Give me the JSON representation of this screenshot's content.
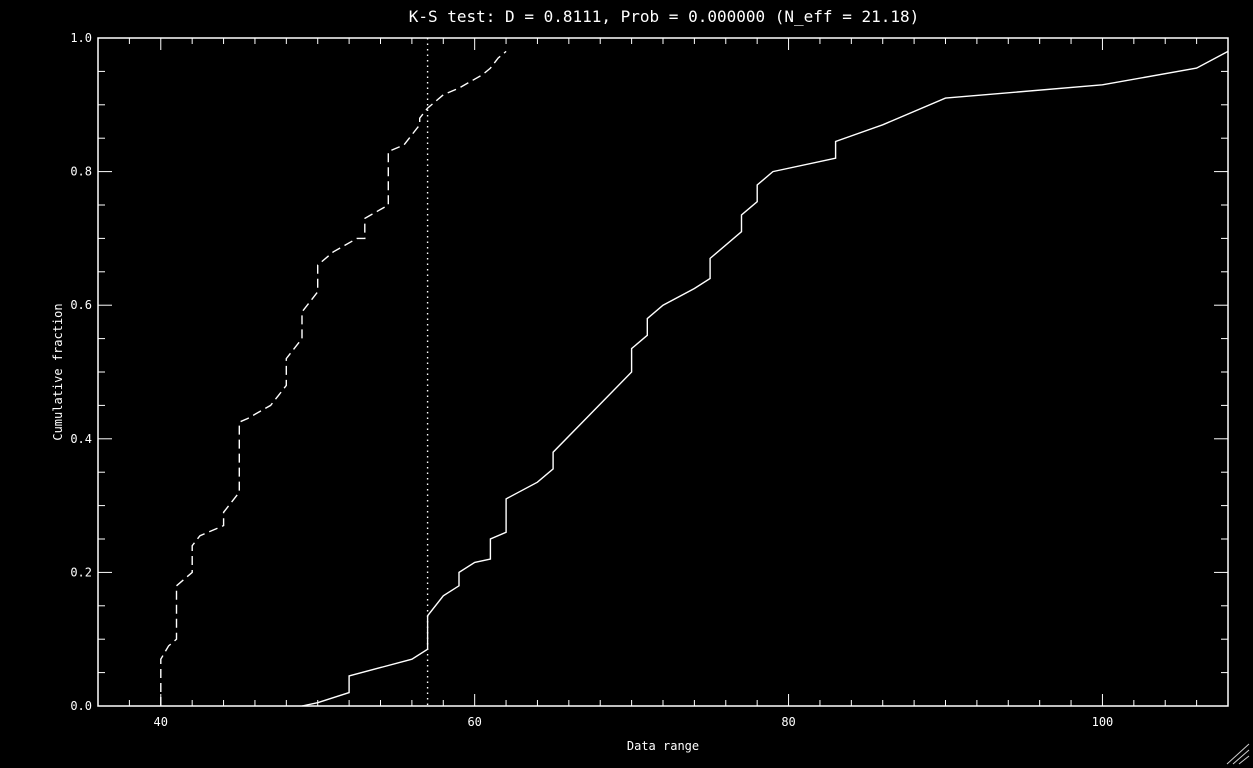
{
  "chart_data": {
    "type": "line",
    "title": "K-S test:  D = 0.8111, Prob = 0.000000  (N_eff = 21.18)",
    "xlabel": "Data range",
    "ylabel": "Cumulative fraction",
    "xlim": [
      36,
      108
    ],
    "ylim": [
      0,
      1
    ],
    "x_ticks": [
      40,
      60,
      80,
      100
    ],
    "x_tick_labels": [
      "40",
      "60",
      "80",
      "100"
    ],
    "y_ticks": [
      0,
      0.2,
      0.4,
      0.6,
      0.8,
      1.0
    ],
    "y_tick_labels": [
      "0.0",
      "0.2",
      "0.4",
      "0.6",
      "0.8",
      "1.0"
    ],
    "x_minor_step": 2,
    "y_minor_step": 0.05,
    "grid": false,
    "background": "#000000",
    "foreground": "#ffffff",
    "series": [
      {
        "style": "dashed",
        "color": "#ffffff",
        "points": [
          [
            40,
            0.0
          ],
          [
            40,
            0.07
          ],
          [
            40.5,
            0.09
          ],
          [
            41,
            0.1
          ],
          [
            41,
            0.18
          ],
          [
            41.5,
            0.19
          ],
          [
            42,
            0.2
          ],
          [
            42,
            0.24
          ],
          [
            42.5,
            0.255
          ],
          [
            44,
            0.27
          ],
          [
            44,
            0.29
          ],
          [
            44.5,
            0.305
          ],
          [
            45,
            0.32
          ],
          [
            45,
            0.425
          ],
          [
            45.5,
            0.43
          ],
          [
            47,
            0.45
          ],
          [
            47.5,
            0.465
          ],
          [
            48,
            0.48
          ],
          [
            48,
            0.52
          ],
          [
            48.5,
            0.535
          ],
          [
            49,
            0.55
          ],
          [
            49,
            0.59
          ],
          [
            49.5,
            0.605
          ],
          [
            50,
            0.62
          ],
          [
            50,
            0.66
          ],
          [
            51,
            0.68
          ],
          [
            52.5,
            0.7
          ],
          [
            53,
            0.7
          ],
          [
            53,
            0.73
          ],
          [
            54.5,
            0.75
          ],
          [
            54.5,
            0.83
          ],
          [
            55.5,
            0.84
          ],
          [
            56.5,
            0.87
          ],
          [
            56.5,
            0.88
          ],
          [
            57,
            0.895
          ],
          [
            57.5,
            0.905
          ],
          [
            58,
            0.915
          ],
          [
            59,
            0.925
          ],
          [
            60.5,
            0.945
          ],
          [
            61,
            0.955
          ],
          [
            61.5,
            0.97
          ],
          [
            62,
            0.98
          ]
        ]
      },
      {
        "style": "solid",
        "color": "#ffffff",
        "points": [
          [
            49,
            0.0
          ],
          [
            50,
            0.005
          ],
          [
            52,
            0.02
          ],
          [
            52,
            0.045
          ],
          [
            56,
            0.07
          ],
          [
            57,
            0.085
          ],
          [
            57,
            0.135
          ],
          [
            58,
            0.165
          ],
          [
            59,
            0.18
          ],
          [
            59,
            0.2
          ],
          [
            60,
            0.215
          ],
          [
            61,
            0.22
          ],
          [
            61,
            0.25
          ],
          [
            62,
            0.26
          ],
          [
            62,
            0.31
          ],
          [
            64,
            0.335
          ],
          [
            65,
            0.355
          ],
          [
            65,
            0.38
          ],
          [
            70,
            0.5
          ],
          [
            70,
            0.535
          ],
          [
            71,
            0.555
          ],
          [
            71,
            0.58
          ],
          [
            72,
            0.6
          ],
          [
            74,
            0.625
          ],
          [
            75,
            0.64
          ],
          [
            75,
            0.67
          ],
          [
            77,
            0.71
          ],
          [
            77,
            0.735
          ],
          [
            78,
            0.755
          ],
          [
            78,
            0.78
          ],
          [
            79,
            0.8
          ],
          [
            83,
            0.82
          ],
          [
            83,
            0.845
          ],
          [
            86,
            0.87
          ],
          [
            90,
            0.91
          ],
          [
            100,
            0.93
          ],
          [
            106,
            0.955
          ],
          [
            108,
            0.98
          ]
        ]
      }
    ],
    "vlines": [
      {
        "x": 57,
        "style": "dotted",
        "color": "#ffffff"
      }
    ]
  }
}
